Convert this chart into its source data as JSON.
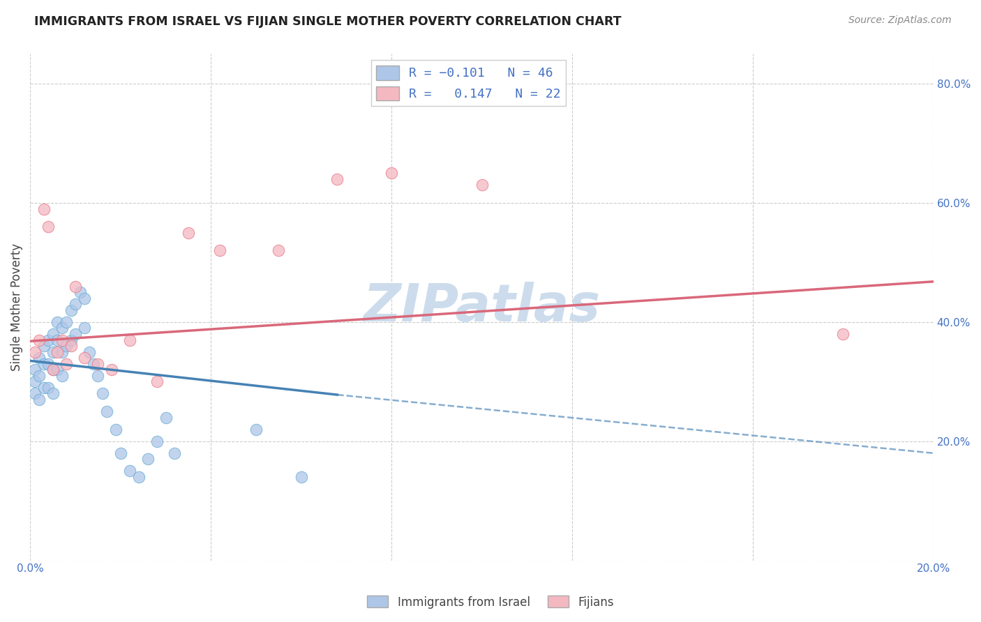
{
  "title": "IMMIGRANTS FROM ISRAEL VS FIJIAN SINGLE MOTHER POVERTY CORRELATION CHART",
  "source": "Source: ZipAtlas.com",
  "ylabel": "Single Mother Poverty",
  "xlim": [
    0.0,
    0.2
  ],
  "ylim": [
    0.0,
    0.85
  ],
  "series1_name": "Immigrants from Israel",
  "series2_name": "Fijians",
  "series1_color": "#aec6e8",
  "series2_color": "#f4b8c1",
  "series1_edge_color": "#6baed6",
  "series2_edge_color": "#e87b8a",
  "series1_line_color": "#4682b4",
  "series2_line_color": "#d9687a",
  "watermark": "ZIPatlas",
  "watermark_color": "#ccdcec",
  "R1": -0.101,
  "N1": 46,
  "R2": 0.147,
  "N2": 22,
  "israel_x": [
    0.001,
    0.001,
    0.001,
    0.002,
    0.002,
    0.002,
    0.003,
    0.003,
    0.003,
    0.004,
    0.004,
    0.004,
    0.005,
    0.005,
    0.005,
    0.005,
    0.006,
    0.006,
    0.006,
    0.007,
    0.007,
    0.007,
    0.008,
    0.008,
    0.009,
    0.009,
    0.01,
    0.01,
    0.011,
    0.012,
    0.012,
    0.013,
    0.014,
    0.015,
    0.016,
    0.017,
    0.019,
    0.02,
    0.022,
    0.024,
    0.026,
    0.028,
    0.03,
    0.032,
    0.05,
    0.06
  ],
  "israel_y": [
    0.32,
    0.3,
    0.28,
    0.34,
    0.31,
    0.27,
    0.36,
    0.33,
    0.29,
    0.37,
    0.33,
    0.29,
    0.38,
    0.35,
    0.32,
    0.28,
    0.4,
    0.37,
    0.32,
    0.39,
    0.35,
    0.31,
    0.4,
    0.36,
    0.42,
    0.37,
    0.43,
    0.38,
    0.45,
    0.44,
    0.39,
    0.35,
    0.33,
    0.31,
    0.28,
    0.25,
    0.22,
    0.18,
    0.15,
    0.14,
    0.17,
    0.2,
    0.24,
    0.18,
    0.22,
    0.14
  ],
  "fijian_x": [
    0.001,
    0.002,
    0.003,
    0.004,
    0.005,
    0.006,
    0.007,
    0.008,
    0.009,
    0.01,
    0.012,
    0.015,
    0.018,
    0.022,
    0.028,
    0.035,
    0.042,
    0.055,
    0.068,
    0.08,
    0.1,
    0.18
  ],
  "fijian_y": [
    0.35,
    0.37,
    0.59,
    0.56,
    0.32,
    0.35,
    0.37,
    0.33,
    0.36,
    0.46,
    0.34,
    0.33,
    0.32,
    0.37,
    0.3,
    0.55,
    0.52,
    0.52,
    0.64,
    0.65,
    0.63,
    0.38
  ],
  "trend1_x0": 0.0,
  "trend1_y0": 0.335,
  "trend1_x1": 0.068,
  "trend1_y1": 0.278,
  "trend1_dashed_x1": 0.2,
  "trend1_dashed_y1": 0.18,
  "trend2_x0": 0.0,
  "trend2_y0": 0.368,
  "trend2_x1": 0.2,
  "trend2_y1": 0.468
}
